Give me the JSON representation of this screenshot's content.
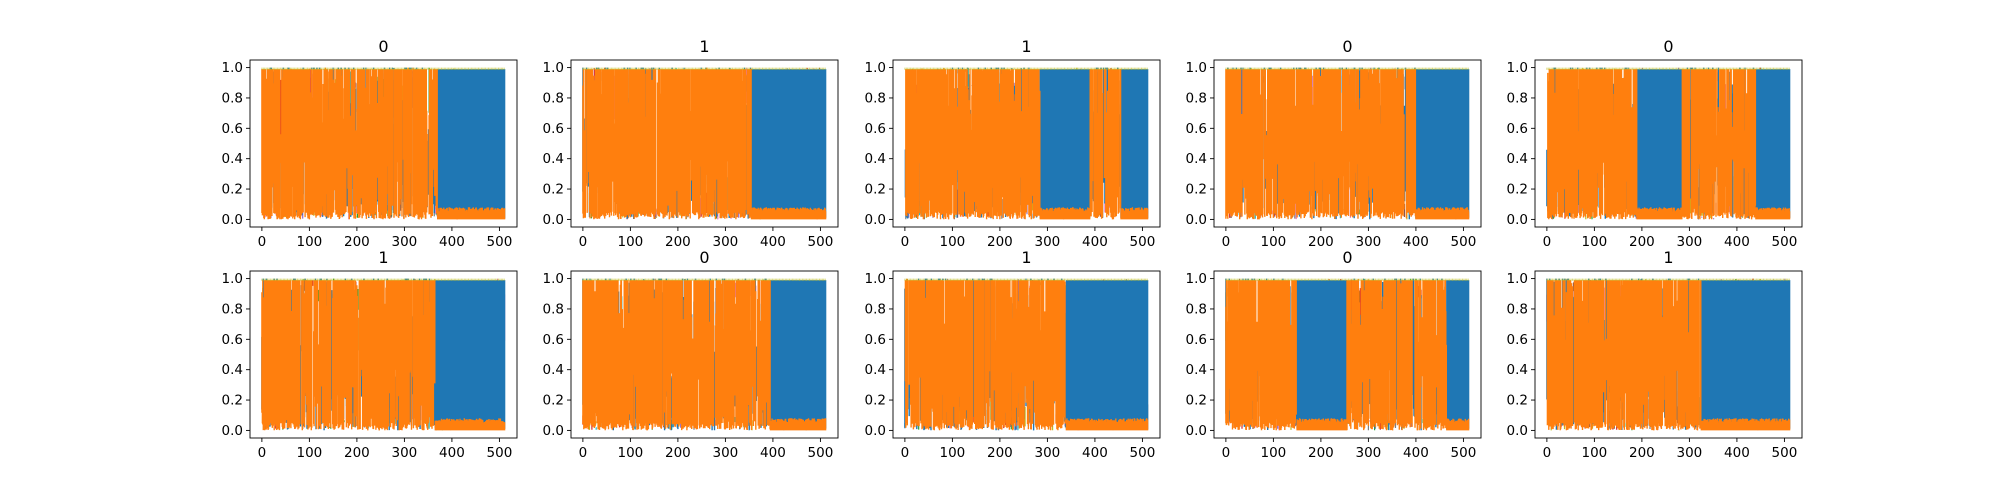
{
  "figure": {
    "title": "",
    "rows": 2,
    "cols": 5
  },
  "palette": {
    "dominant_a": "#ff7f0e",
    "dominant_b": "#1f77b4",
    "accents": [
      "#17becf",
      "#bcbd22",
      "#2ca02c",
      "#9467bd",
      "#e377c2",
      "#d62728",
      "#8c564b",
      "#7f7f7f"
    ]
  },
  "chart_data": [
    {
      "type": "line",
      "title": "0",
      "xlabel": "",
      "ylabel": "",
      "xlim": [
        -25,
        537
      ],
      "ylim": [
        -0.05,
        1.05
      ],
      "xticks": [
        0,
        100,
        200,
        300,
        400,
        500
      ],
      "yticks": [
        0.0,
        0.2,
        0.4,
        0.6,
        0.8,
        1.0
      ],
      "grid": false,
      "series_count_note": "many overlapping series, values between 0 and 1",
      "dominant_segments": [
        {
          "from": 0,
          "to": 370,
          "dominant": "orange"
        },
        {
          "from": 370,
          "to": 511,
          "dominant": "blue"
        }
      ]
    },
    {
      "type": "line",
      "title": "1",
      "xlabel": "",
      "ylabel": "",
      "xlim": [
        -25,
        537
      ],
      "ylim": [
        -0.05,
        1.05
      ],
      "xticks": [
        0,
        100,
        200,
        300,
        400,
        500
      ],
      "yticks": [
        0.0,
        0.2,
        0.4,
        0.6,
        0.8,
        1.0
      ],
      "grid": false,
      "dominant_segments": [
        {
          "from": 0,
          "to": 355,
          "dominant": "orange"
        },
        {
          "from": 355,
          "to": 511,
          "dominant": "blue"
        }
      ]
    },
    {
      "type": "line",
      "title": "1",
      "xlabel": "",
      "ylabel": "",
      "xlim": [
        -25,
        537
      ],
      "ylim": [
        -0.05,
        1.05
      ],
      "xticks": [
        0,
        100,
        200,
        300,
        400,
        500
      ],
      "yticks": [
        0.0,
        0.2,
        0.4,
        0.6,
        0.8,
        1.0
      ],
      "grid": false,
      "dominant_segments": [
        {
          "from": 0,
          "to": 285,
          "dominant": "orange"
        },
        {
          "from": 285,
          "to": 390,
          "dominant": "blue"
        },
        {
          "from": 390,
          "to": 455,
          "dominant": "orange"
        },
        {
          "from": 455,
          "to": 511,
          "dominant": "blue"
        }
      ]
    },
    {
      "type": "line",
      "title": "0",
      "xlabel": "",
      "ylabel": "",
      "xlim": [
        -25,
        537
      ],
      "ylim": [
        -0.05,
        1.05
      ],
      "xticks": [
        0,
        100,
        200,
        300,
        400,
        500
      ],
      "yticks": [
        0.0,
        0.2,
        0.4,
        0.6,
        0.8,
        1.0
      ],
      "grid": false,
      "dominant_segments": [
        {
          "from": 0,
          "to": 400,
          "dominant": "orange"
        },
        {
          "from": 400,
          "to": 511,
          "dominant": "blue"
        }
      ]
    },
    {
      "type": "line",
      "title": "0",
      "xlabel": "",
      "ylabel": "",
      "xlim": [
        -25,
        537
      ],
      "ylim": [
        -0.05,
        1.05
      ],
      "xticks": [
        0,
        100,
        200,
        300,
        400,
        500
      ],
      "yticks": [
        0.0,
        0.2,
        0.4,
        0.6,
        0.8,
        1.0
      ],
      "grid": false,
      "dominant_segments": [
        {
          "from": 0,
          "to": 190,
          "dominant": "orange"
        },
        {
          "from": 190,
          "to": 285,
          "dominant": "blue"
        },
        {
          "from": 285,
          "to": 440,
          "dominant": "orange"
        },
        {
          "from": 440,
          "to": 511,
          "dominant": "blue"
        }
      ]
    },
    {
      "type": "line",
      "title": "1",
      "xlabel": "",
      "ylabel": "",
      "xlim": [
        -25,
        537
      ],
      "ylim": [
        -0.05,
        1.05
      ],
      "xticks": [
        0,
        100,
        200,
        300,
        400,
        500
      ],
      "yticks": [
        0.0,
        0.2,
        0.4,
        0.6,
        0.8,
        1.0
      ],
      "grid": false,
      "dominant_segments": [
        {
          "from": 0,
          "to": 365,
          "dominant": "orange"
        },
        {
          "from": 365,
          "to": 511,
          "dominant": "blue"
        }
      ]
    },
    {
      "type": "line",
      "title": "0",
      "xlabel": "",
      "ylabel": "",
      "xlim": [
        -25,
        537
      ],
      "ylim": [
        -0.05,
        1.05
      ],
      "xticks": [
        0,
        100,
        200,
        300,
        400,
        500
      ],
      "yticks": [
        0.0,
        0.2,
        0.4,
        0.6,
        0.8,
        1.0
      ],
      "grid": false,
      "dominant_segments": [
        {
          "from": 0,
          "to": 395,
          "dominant": "orange"
        },
        {
          "from": 395,
          "to": 511,
          "dominant": "blue"
        }
      ]
    },
    {
      "type": "line",
      "title": "1",
      "xlabel": "",
      "ylabel": "",
      "xlim": [
        -25,
        537
      ],
      "ylim": [
        -0.05,
        1.05
      ],
      "xticks": [
        0,
        100,
        200,
        300,
        400,
        500
      ],
      "yticks": [
        0.0,
        0.2,
        0.4,
        0.6,
        0.8,
        1.0
      ],
      "grid": false,
      "dominant_segments": [
        {
          "from": 0,
          "to": 340,
          "dominant": "orange"
        },
        {
          "from": 340,
          "to": 511,
          "dominant": "blue"
        }
      ]
    },
    {
      "type": "line",
      "title": "0",
      "xlabel": "",
      "ylabel": "",
      "xlim": [
        -25,
        537
      ],
      "ylim": [
        -0.05,
        1.05
      ],
      "xticks": [
        0,
        100,
        200,
        300,
        400,
        500
      ],
      "yticks": [
        0.0,
        0.2,
        0.4,
        0.6,
        0.8,
        1.0
      ],
      "grid": false,
      "dominant_segments": [
        {
          "from": 0,
          "to": 150,
          "dominant": "orange"
        },
        {
          "from": 150,
          "to": 255,
          "dominant": "blue"
        },
        {
          "from": 255,
          "to": 465,
          "dominant": "orange"
        },
        {
          "from": 465,
          "to": 511,
          "dominant": "blue"
        }
      ]
    },
    {
      "type": "line",
      "title": "1",
      "xlabel": "",
      "ylabel": "",
      "xlim": [
        -25,
        537
      ],
      "ylim": [
        -0.05,
        1.05
      ],
      "xticks": [
        0,
        100,
        200,
        300,
        400,
        500
      ],
      "yticks": [
        0.0,
        0.2,
        0.4,
        0.6,
        0.8,
        1.0
      ],
      "grid": false,
      "dominant_segments": [
        {
          "from": 0,
          "to": 325,
          "dominant": "orange"
        },
        {
          "from": 325,
          "to": 511,
          "dominant": "blue"
        }
      ]
    }
  ]
}
